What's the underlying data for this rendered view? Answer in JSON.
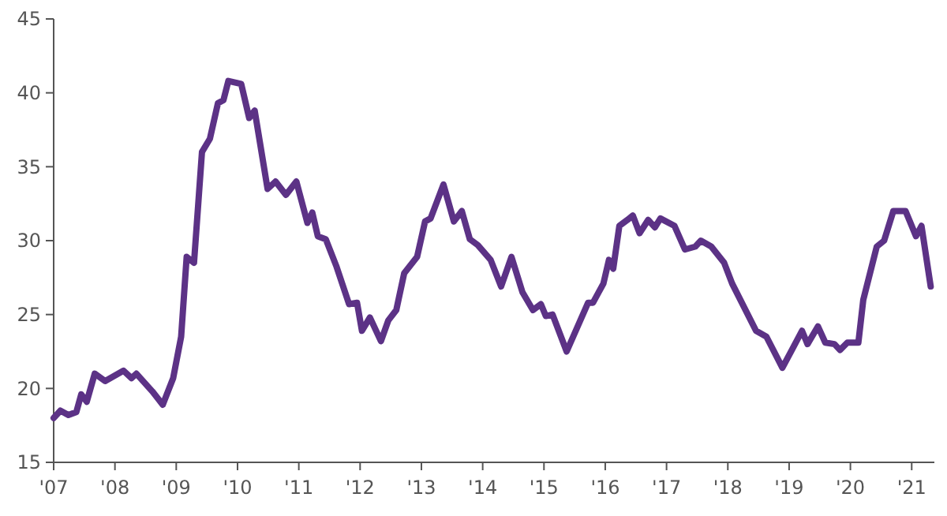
{
  "chart_data": {
    "type": "line",
    "xlim": [
      2007,
      2021.37
    ],
    "ylim": [
      15,
      45
    ],
    "yticks": [
      15,
      20,
      25,
      30,
      35,
      40,
      45
    ],
    "xticks": [
      {
        "value": 2007,
        "label": "'07"
      },
      {
        "value": 2008,
        "label": "'08"
      },
      {
        "value": 2009,
        "label": "'09"
      },
      {
        "value": 2010,
        "label": "'10"
      },
      {
        "value": 2011,
        "label": "'11"
      },
      {
        "value": 2012,
        "label": "'12"
      },
      {
        "value": 2013,
        "label": "'13"
      },
      {
        "value": 2014,
        "label": "'14"
      },
      {
        "value": 2015,
        "label": "'15"
      },
      {
        "value": 2016,
        "label": "'16"
      },
      {
        "value": 2017,
        "label": "'17"
      },
      {
        "value": 2018,
        "label": "'18"
      },
      {
        "value": 2019,
        "label": "'19"
      },
      {
        "value": 2020,
        "label": "'20"
      },
      {
        "value": 2021,
        "label": "'21"
      }
    ],
    "grid": false,
    "marker": "none",
    "line_style": "solid",
    "series": [
      {
        "color": "#5c3286",
        "x": [
          2007.0,
          2007.11,
          2007.24,
          2007.37,
          2007.45,
          2007.54,
          2007.67,
          2007.84,
          2008.14,
          2008.27,
          2008.35,
          2008.61,
          2008.78,
          2008.95,
          2009.08,
          2009.17,
          2009.29,
          2009.42,
          2009.55,
          2009.68,
          2009.77,
          2009.85,
          2010.06,
          2010.19,
          2010.28,
          2010.49,
          2010.62,
          2010.79,
          2010.96,
          2011.14,
          2011.22,
          2011.31,
          2011.44,
          2011.61,
          2011.82,
          2011.95,
          2012.03,
          2012.16,
          2012.34,
          2012.46,
          2012.59,
          2012.72,
          2012.93,
          2013.06,
          2013.15,
          2013.36,
          2013.53,
          2013.66,
          2013.79,
          2013.92,
          2014.13,
          2014.3,
          2014.47,
          2014.65,
          2014.82,
          2014.95,
          2015.03,
          2015.14,
          2015.37,
          2015.72,
          2015.8,
          2015.97,
          2016.06,
          2016.13,
          2016.23,
          2016.36,
          2016.45,
          2016.56,
          2016.7,
          2016.81,
          2016.9,
          2017.13,
          2017.3,
          2017.47,
          2017.56,
          2017.73,
          2017.94,
          2018.07,
          2018.46,
          2018.63,
          2018.89,
          2019.07,
          2019.21,
          2019.3,
          2019.47,
          2019.59,
          2019.74,
          2019.83,
          2019.95,
          2020.13,
          2020.21,
          2020.43,
          2020.55,
          2020.7,
          2020.9,
          2021.07,
          2021.16,
          2021.31
        ],
        "values": [
          18.0,
          18.5,
          18.2,
          18.4,
          19.6,
          19.1,
          21.0,
          20.5,
          21.2,
          20.7,
          21.0,
          19.8,
          18.9,
          20.7,
          23.5,
          28.9,
          28.5,
          36.0,
          36.9,
          39.3,
          39.5,
          40.8,
          40.6,
          38.3,
          38.8,
          33.5,
          34.0,
          33.1,
          34.0,
          31.2,
          31.9,
          30.3,
          30.1,
          28.3,
          25.7,
          25.8,
          23.9,
          24.8,
          23.2,
          24.6,
          25.3,
          27.8,
          28.9,
          31.3,
          31.5,
          33.8,
          31.3,
          32.0,
          30.1,
          29.7,
          28.7,
          26.9,
          28.9,
          26.5,
          25.3,
          25.7,
          24.9,
          25.0,
          22.5,
          25.8,
          25.8,
          27.1,
          28.7,
          28.1,
          31.0,
          31.4,
          31.7,
          30.5,
          31.4,
          30.9,
          31.5,
          31.0,
          29.4,
          29.6,
          30.0,
          29.6,
          28.5,
          27.1,
          23.9,
          23.5,
          21.4,
          22.8,
          23.9,
          23.0,
          24.2,
          23.1,
          23.0,
          22.6,
          23.1,
          23.1,
          26.0,
          29.6,
          30.0,
          32.0,
          32.0,
          30.3,
          31.0,
          26.9
        ]
      }
    ]
  }
}
